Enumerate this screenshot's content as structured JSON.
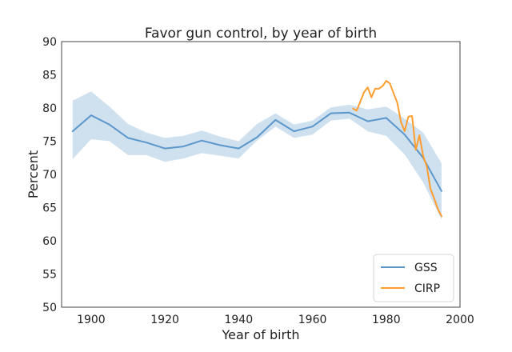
{
  "chart_data": {
    "type": "line",
    "title": "Favor gun control, by year of birth",
    "xlabel": "Year of birth",
    "ylabel": "Percent",
    "xlim": [
      1892,
      2000
    ],
    "ylim": [
      50,
      90
    ],
    "xticks": [
      1900,
      1920,
      1940,
      1960,
      1980,
      2000
    ],
    "yticks": [
      50,
      55,
      60,
      65,
      70,
      75,
      80,
      85,
      90
    ],
    "grid": false,
    "legend_position": "bottom-right",
    "series": [
      {
        "name": "GSS",
        "color": "#5B97CB",
        "band_color": "#CFE0EF",
        "x": [
          1895,
          1900,
          1905,
          1910,
          1915,
          1920,
          1925,
          1930,
          1935,
          1940,
          1945,
          1950,
          1955,
          1960,
          1965,
          1970,
          1975,
          1980,
          1985,
          1990,
          1995
        ],
        "values": [
          76.5,
          78.9,
          77.5,
          75.5,
          74.8,
          73.9,
          74.2,
          75.1,
          74.4,
          73.9,
          75.6,
          78.2,
          76.5,
          77.2,
          79.2,
          79.3,
          78.0,
          78.5,
          76.0,
          72.5,
          67.5
        ],
        "lower": [
          72.3,
          75.3,
          75.0,
          72.9,
          72.9,
          71.9,
          72.4,
          73.2,
          72.8,
          72.4,
          75.1,
          77.2,
          75.5,
          76.0,
          78.1,
          78.4,
          76.5,
          75.8,
          73.0,
          68.8,
          63.2
        ],
        "upper": [
          81.1,
          82.5,
          80.2,
          77.6,
          76.3,
          75.5,
          75.8,
          76.6,
          75.7,
          75.0,
          77.6,
          79.2,
          77.5,
          78.1,
          80.1,
          80.5,
          79.8,
          80.2,
          78.4,
          76.3,
          71.7
        ]
      },
      {
        "name": "CIRP",
        "color": "#FF9D2E",
        "x": [
          1971,
          1972,
          1973,
          1974,
          1975,
          1976,
          1977,
          1978,
          1979,
          1980,
          1981,
          1982,
          1983,
          1984,
          1985,
          1986,
          1987,
          1988,
          1989,
          1990,
          1991,
          1992,
          1993,
          1994,
          1995
        ],
        "values": [
          79.9,
          79.6,
          81.0,
          82.4,
          83.1,
          81.6,
          82.9,
          82.9,
          83.3,
          84.1,
          83.7,
          82.2,
          80.8,
          77.9,
          76.5,
          78.7,
          78.8,
          73.7,
          75.9,
          72.8,
          71.2,
          67.8,
          66.4,
          64.8,
          63.7
        ]
      }
    ]
  }
}
